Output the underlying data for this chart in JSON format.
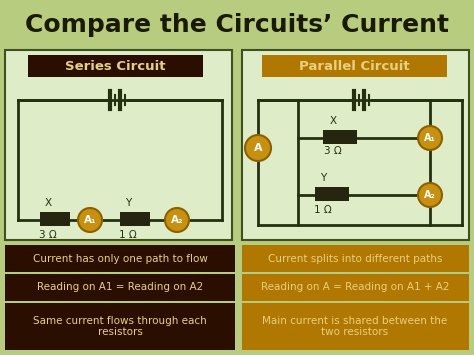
{
  "title": "Compare the Circuits’ Current",
  "title_fontsize": 18,
  "title_color": "#1a1a00",
  "bg_color": "#b8cc80",
  "series_label": "Series Circuit",
  "parallel_label": "Parallel Circuit",
  "series_label_bg": "#2a0e00",
  "parallel_label_bg": "#b07800",
  "label_text_color": "#e8d080",
  "circuit_bg": "#deecc8",
  "circuit_border": "#405020",
  "ammeter_color": "#c89010",
  "ammeter_edge": "#8B6000",
  "resistor_color": "#252510",
  "wire_color": "#253010",
  "series_facts": [
    "Current has only one path to flow",
    "Reading on A1 = Reading on A2",
    "Same current flows through each\nresistors"
  ],
  "parallel_facts": [
    "Current splits into different paths",
    "Reading on A = Reading on A1 + A2",
    "Main current is shared between the\ntwo resistors"
  ],
  "facts_bg_dark": "#2a0e00",
  "facts_bg_gold": "#b07800",
  "facts_text_color": "#e8d080"
}
